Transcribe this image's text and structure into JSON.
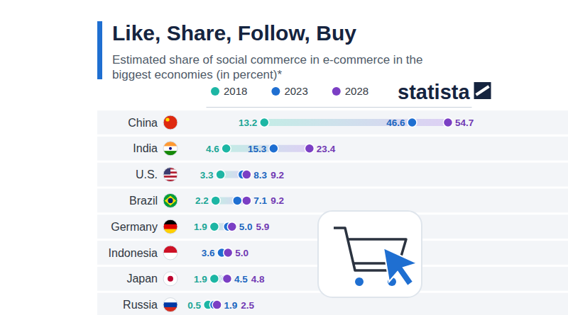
{
  "chart_data": {
    "type": "dot",
    "orientation": "horizontal",
    "title": "Like, Share, Follow, Buy",
    "subtitle": "Estimated share of social commerce in e-commerce in the biggest economies (in percent)*",
    "source": "statista",
    "categories": [
      "China",
      "India",
      "U.S.",
      "Brazil",
      "Germany",
      "Indonesia",
      "Japan",
      "Russia"
    ],
    "series": [
      {
        "name": "2018",
        "color": "#1db6a4",
        "values": [
          13.2,
          4.6,
          3.3,
          2.2,
          1.9,
          null,
          1.9,
          0.5
        ],
        "value_labels": [
          "13.2",
          "4.6",
          "3.3",
          "2.2",
          "1.9",
          null,
          "1.9",
          "0.5"
        ]
      },
      {
        "name": "2023",
        "color": "#1f6fd1",
        "values": [
          46.6,
          15.3,
          8.3,
          7.1,
          5.0,
          3.6,
          4.5,
          1.9
        ],
        "value_labels": [
          "46.6",
          "15.3",
          "8.3",
          "7.1",
          "5.0",
          "3.6",
          "4.5",
          "1.9"
        ]
      },
      {
        "name": "2028",
        "color": "#7b3fc4",
        "values": [
          54.7,
          23.4,
          9.2,
          9.2,
          5.9,
          5.0,
          4.8,
          2.5
        ],
        "value_labels": [
          "54.7",
          "23.4",
          "9.2",
          "9.2",
          "5.9",
          "5.0",
          "4.8",
          "2.5"
        ]
      }
    ],
    "xlim": [
      0,
      60
    ],
    "data_labels": true,
    "tick_labels": false,
    "legend": "top"
  }
}
